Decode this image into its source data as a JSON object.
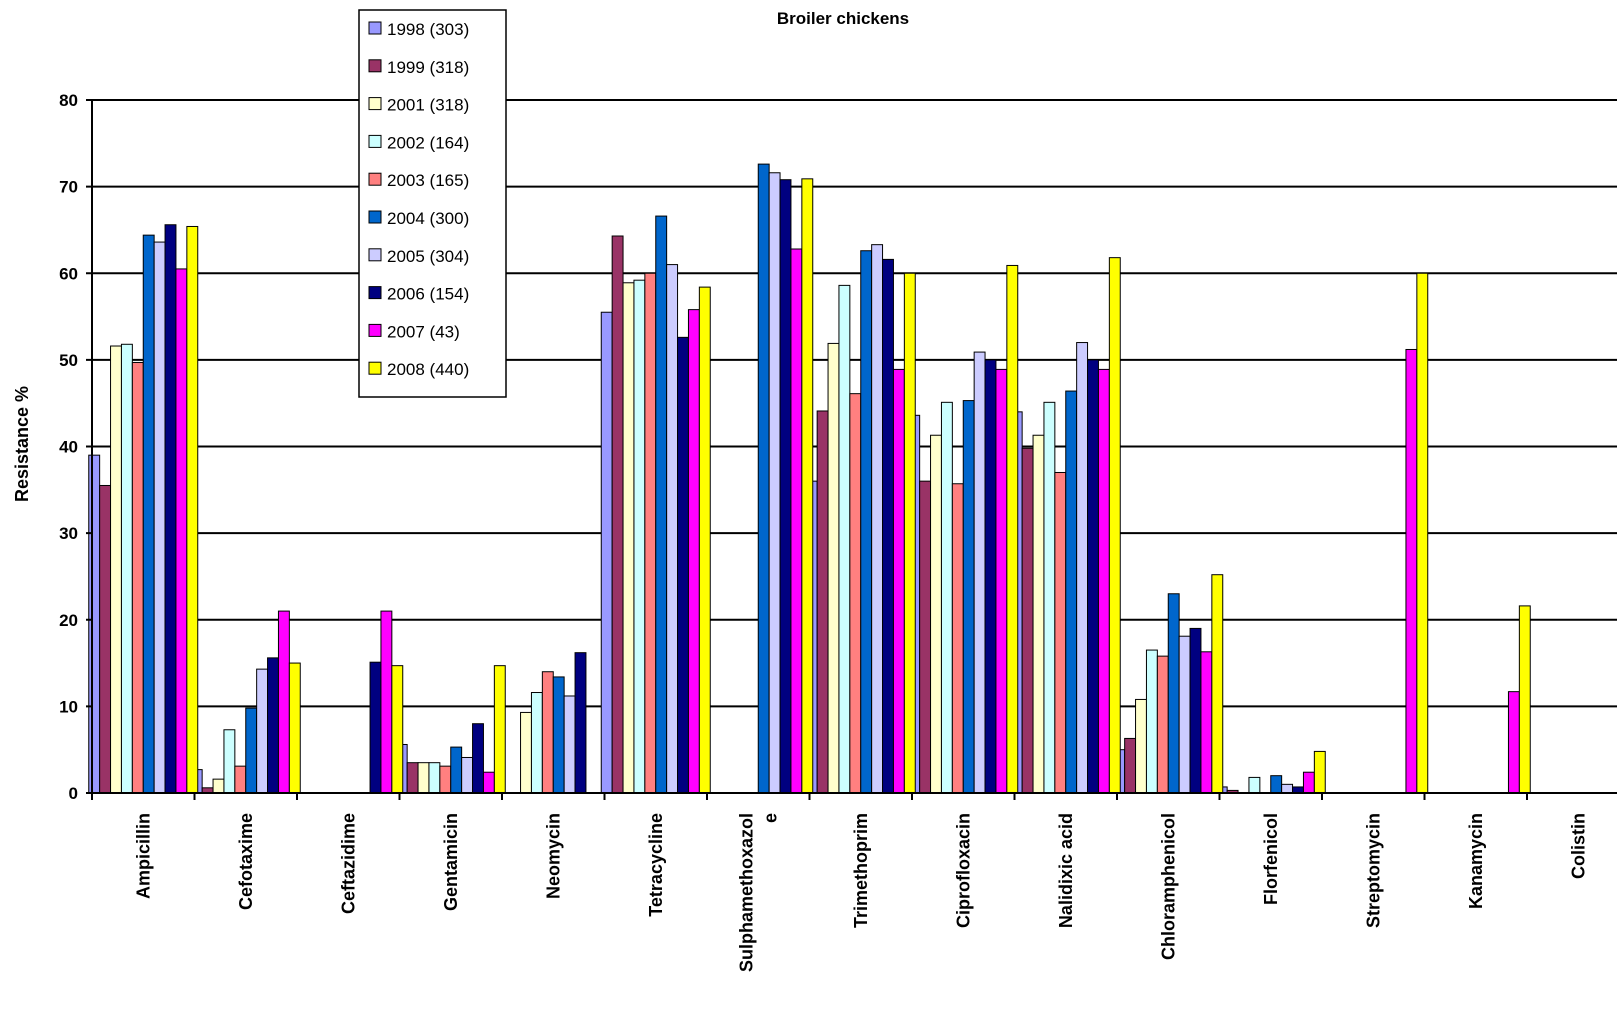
{
  "chart_data": {
    "type": "bar",
    "title": "Broiler chickens",
    "xlabel": "",
    "ylabel": "Resistance %",
    "ylim": [
      0,
      80
    ],
    "yticks": [
      0,
      10,
      20,
      30,
      40,
      50,
      60,
      70,
      80
    ],
    "grid": true,
    "legend_position": "top-left",
    "categories": [
      "Ampicillin",
      "Cefotaxime",
      "Ceftazidime",
      "Gentamicin",
      "Neomycin",
      "Tetracycline",
      "Sulphamethoxazole",
      "Trimethoprim",
      "Ciprofloxacin",
      "Nalidixic acid",
      "Chloramphenicol",
      "Florfenicol",
      "Streptomycin",
      "Kanamycin",
      "Colistin"
    ],
    "category_lines": [
      [
        "Ampicillin"
      ],
      [
        "Cefotaxime"
      ],
      [
        "Ceftazidime"
      ],
      [
        "Gentamicin"
      ],
      [
        "Neomycin"
      ],
      [
        "Tetracycline"
      ],
      [
        "Sulphamethoxazol",
        "e"
      ],
      [
        "Trimethoprim"
      ],
      [
        "Ciprofloxacin"
      ],
      [
        "Nalidixic acid"
      ],
      [
        "Chloramphenicol"
      ],
      [
        "Florfenicol"
      ],
      [
        "Streptomycin"
      ],
      [
        "Kanamycin"
      ],
      [
        "Colistin"
      ]
    ],
    "series": [
      {
        "name": "1998 (303)",
        "color": "#9999FF",
        "values": [
          39,
          2.7,
          0,
          5.6,
          0,
          55.5,
          0,
          36,
          43.6,
          44,
          5,
          0.7,
          0,
          0,
          0
        ]
      },
      {
        "name": "1999 (318)",
        "color": "#993366",
        "values": [
          35.5,
          0.6,
          0,
          3.5,
          0,
          64.3,
          0,
          44.1,
          36,
          39.8,
          6.3,
          0.3,
          0,
          0,
          0
        ]
      },
      {
        "name": "2001 (318)",
        "color": "#FFFFCC",
        "values": [
          51.6,
          1.6,
          0,
          3.5,
          9.3,
          58.9,
          0,
          51.9,
          41.3,
          41.3,
          10.8,
          0,
          0,
          0,
          0
        ]
      },
      {
        "name": "2002 (164)",
        "color": "#CCFFFF",
        "values": [
          51.8,
          7.3,
          0,
          3.5,
          11.6,
          59.2,
          0,
          58.6,
          45.1,
          45.1,
          16.5,
          1.8,
          0,
          0,
          0
        ]
      },
      {
        "name": "2003 (165)",
        "color": "#FF8080",
        "values": [
          49.7,
          3.1,
          0,
          3.1,
          14,
          60,
          0,
          46.1,
          35.7,
          37,
          15.8,
          0,
          0,
          0,
          0
        ]
      },
      {
        "name": "2004 (300)",
        "color": "#0066CC",
        "values": [
          64.4,
          9.8,
          0,
          5.3,
          13.4,
          66.6,
          72.6,
          62.6,
          45.3,
          46.4,
          23,
          2,
          0,
          0,
          0
        ]
      },
      {
        "name": "2005 (304)",
        "color": "#CCCCFF",
        "values": [
          63.6,
          14.3,
          0,
          4.1,
          11.2,
          61,
          71.6,
          63.3,
          50.9,
          52,
          18.1,
          1,
          0,
          0,
          0
        ]
      },
      {
        "name": "2006 (154)",
        "color": "#000080",
        "values": [
          65.6,
          15.6,
          15.1,
          8,
          16.2,
          52.6,
          70.8,
          61.6,
          50,
          50,
          19,
          0.7,
          0,
          0,
          0
        ]
      },
      {
        "name": "2007 (43)",
        "color": "#FF00FF",
        "values": [
          60.5,
          21,
          21,
          2.4,
          0,
          55.8,
          62.8,
          48.9,
          48.9,
          48.9,
          16.3,
          2.4,
          51.2,
          11.7,
          0
        ]
      },
      {
        "name": "2008 (440)",
        "color": "#FFFF00",
        "values": [
          65.4,
          15,
          14.7,
          14.7,
          0,
          58.4,
          70.9,
          60,
          60.9,
          61.8,
          25.2,
          4.8,
          60,
          21.6,
          0
        ]
      }
    ]
  }
}
